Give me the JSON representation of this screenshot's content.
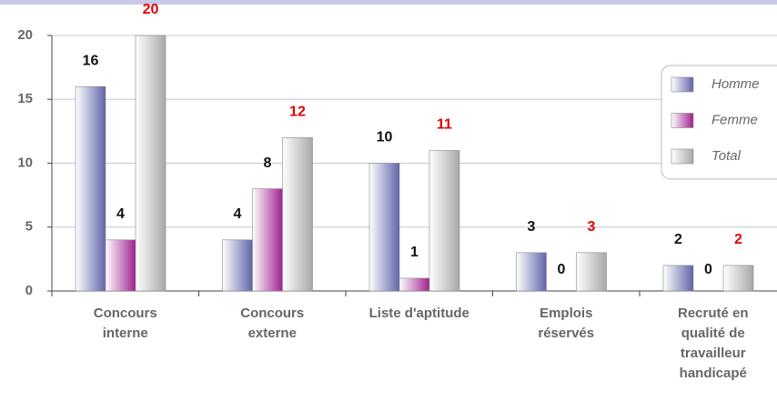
{
  "chart_data": {
    "type": "bar",
    "categories": [
      "Concours interne",
      "Concours externe",
      "Liste d'aptitude",
      "Emplois réservés",
      "Recruté en qualité de travailleur handicapé"
    ],
    "series": [
      {
        "name": "Homme",
        "color": "#5f64a8",
        "values": [
          16,
          4,
          10,
          3,
          2
        ]
      },
      {
        "name": "Femme",
        "color": "#a0208f",
        "values": [
          4,
          8,
          1,
          0,
          0
        ]
      },
      {
        "name": "Total",
        "color": "#a8a8a8",
        "values": [
          20,
          12,
          11,
          3,
          2
        ]
      }
    ],
    "ylim": [
      0,
      20
    ],
    "yticks": [
      0,
      5,
      10,
      15,
      20
    ],
    "grid": true,
    "legend": "right"
  }
}
